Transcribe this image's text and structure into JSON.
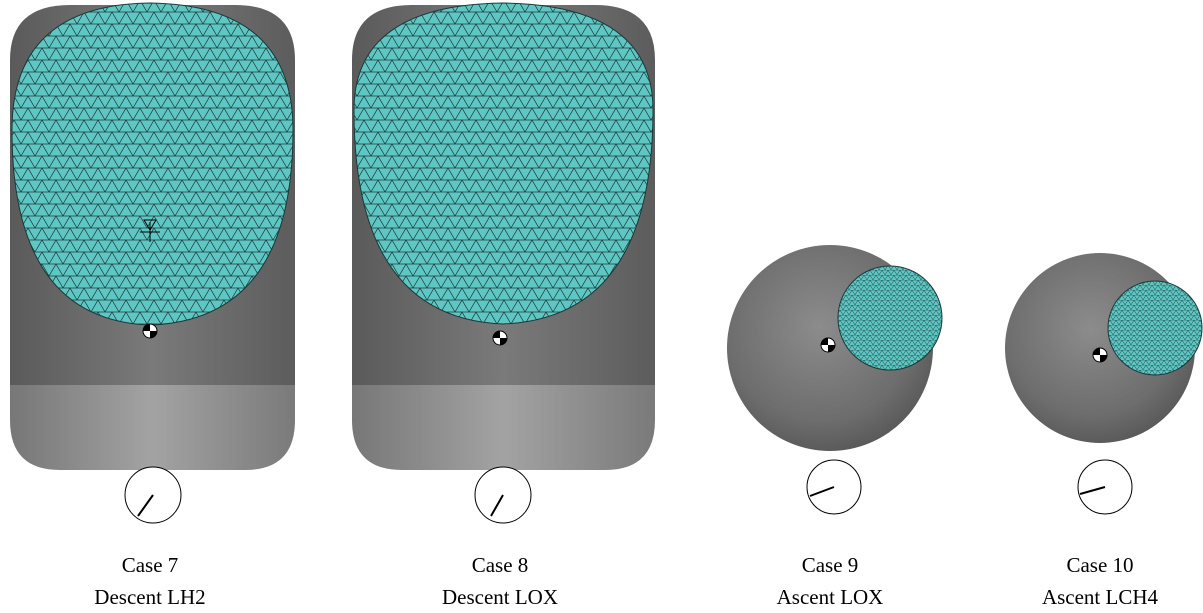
{
  "panels": [
    {
      "case": "Case 7",
      "label": "Descent LH2"
    },
    {
      "case": "Case 8",
      "label": "Descent LOX"
    },
    {
      "case": "Case 9",
      "label": "Ascent LOX"
    },
    {
      "case": "Case 10",
      "label": "Ascent LCH4"
    }
  ]
}
